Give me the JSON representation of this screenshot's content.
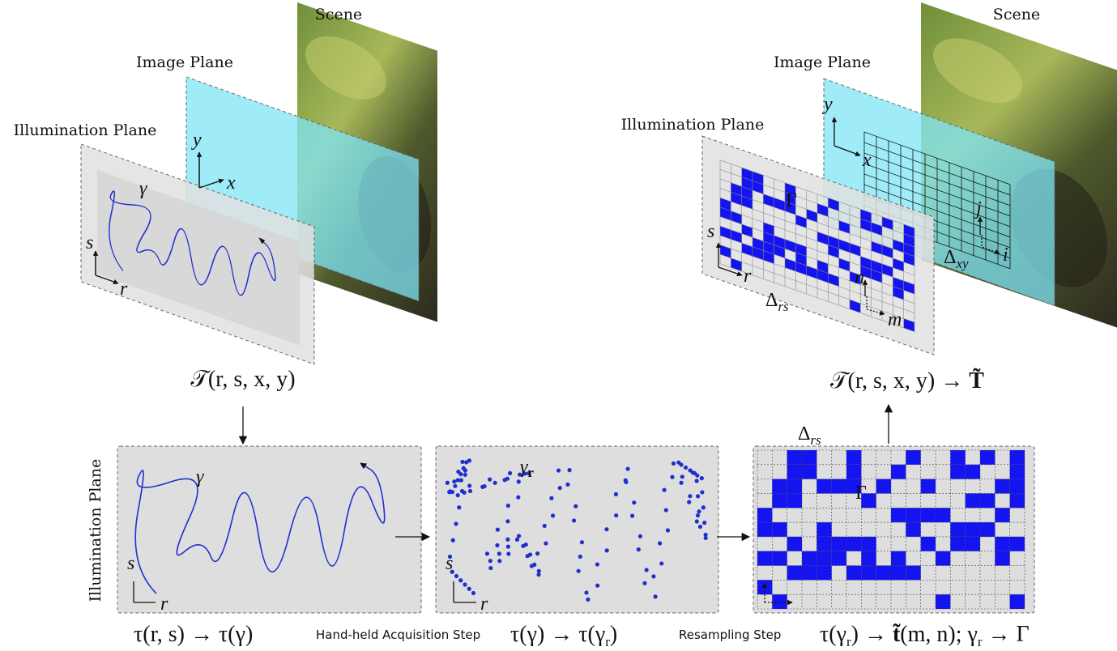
{
  "top_left": {
    "scene_label": "Scene",
    "image_plane_label": "Image Plane",
    "illumination_plane_label": "Illumination Plane",
    "axis_x": "x",
    "axis_y": "y",
    "axis_r": "r",
    "axis_s": "s",
    "path_label": "γ",
    "formula": "𝒯(r, s, x, y)"
  },
  "top_right": {
    "scene_label": "Scene",
    "image_plane_label": "Image Plane",
    "illumination_plane_label": "Illumination Plane",
    "axis_x": "x",
    "axis_y": "y",
    "axis_r": "r",
    "axis_s": "s",
    "grid_label": "Γ",
    "axis_i": "i",
    "axis_j": "j",
    "axis_m": "m",
    "axis_n": "n",
    "delta_rs": {
      "base": "Δ",
      "sub": "rs"
    },
    "delta_xy": {
      "base": "Δ",
      "sub": "xy"
    },
    "formula": {
      "main": "𝒯(r, s, x, y) → ",
      "bold": "T̃"
    }
  },
  "bottom": {
    "side_label": "Illumination Plane",
    "panel_1": {
      "path_label": "γ",
      "axis_s": "s",
      "axis_r": "r"
    },
    "panel_2": {
      "path_label": "γ",
      "path_sub": "r",
      "axis_s": "s",
      "axis_r": "r"
    },
    "panel_3": {
      "grid_label": "Γ",
      "delta_rs": {
        "base": "Δ",
        "sub": "rs"
      }
    },
    "caption_1": "τ(r, s) → τ(γ)",
    "step_1": "Hand-held Acquisition Step",
    "caption_2": {
      "a": "τ(γ) → τ(γ",
      "b": "r",
      "c": ")"
    },
    "step_2": "Resampling Step",
    "caption_3": {
      "a": "τ(γ",
      "b": "r",
      "c": ") → ",
      "d": "t̃",
      "e": "(m, n); γ",
      "f": "r",
      "g": " → Γ"
    }
  }
}
